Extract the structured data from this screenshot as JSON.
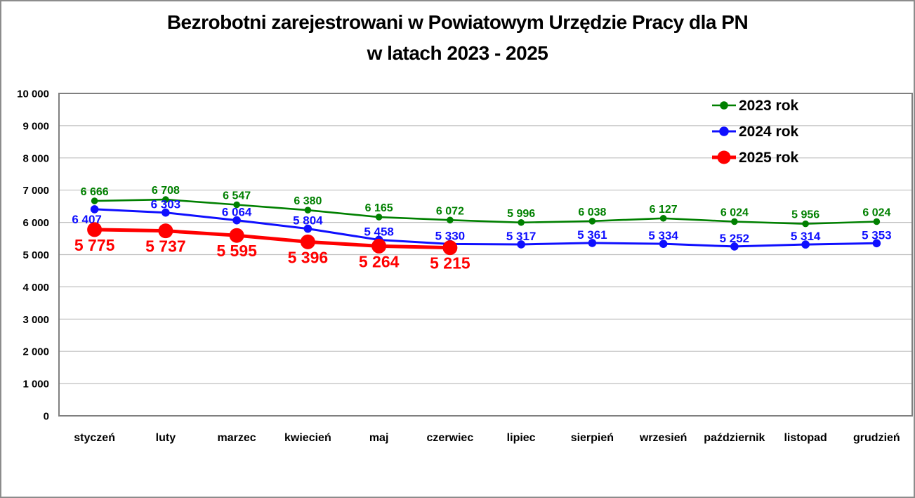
{
  "chart_data": {
    "type": "line",
    "title": "Bezrobotni zarejestrowani w Powiatowym Urzędzie Pracy dla PN w latach 2023 - 2025",
    "title_line1": "Bezrobotni zarejestrowani w Powiatowym Urzędzie Pracy dla PN",
    "title_line2": "w latach 2023 - 2025",
    "xlabel": "",
    "ylabel": "",
    "grid": true,
    "legend_position": "top-right",
    "ylim": [
      0,
      10000
    ],
    "ytick_step": 1000,
    "ytick_labels": [
      "0",
      "1 000",
      "2 000",
      "3 000",
      "4 000",
      "5 000",
      "6 000",
      "7 000",
      "8 000",
      "9 000",
      "10 000"
    ],
    "categories": [
      "styczeń",
      "luty",
      "marzec",
      "kwiecień",
      "maj",
      "czerwiec",
      "lipiec",
      "sierpień",
      "wrzesień",
      "październik",
      "listopad",
      "grudzień"
    ],
    "series": [
      {
        "name": "2023 rok",
        "color": "#008000",
        "values": [
          6666,
          6708,
          6547,
          6380,
          6165,
          6072,
          5996,
          6038,
          6127,
          6024,
          5956,
          6024
        ],
        "value_labels": [
          "6 666",
          "6 708",
          "6 547",
          "6 380",
          "6 165",
          "6 072",
          "5 996",
          "6 038",
          "6 127",
          "6 024",
          "5 956",
          "6 024"
        ]
      },
      {
        "name": "2024 rok",
        "color": "#0f0fff",
        "values": [
          6407,
          6303,
          6064,
          5804,
          5458,
          5330,
          5317,
          5361,
          5334,
          5252,
          5314,
          5353
        ],
        "value_labels": [
          "6 407",
          "6 303",
          "6 064",
          "5 804",
          "5 458",
          "5 330",
          "5 317",
          "5 361",
          "5 334",
          "5 252",
          "5 314",
          "5 353"
        ]
      },
      {
        "name": "2025 rok",
        "color": "#ff0000",
        "values": [
          5775,
          5737,
          5595,
          5396,
          5264,
          5215
        ],
        "value_labels": [
          "5 775",
          "5 737",
          "5 595",
          "5 396",
          "5 264",
          "5 215"
        ]
      }
    ]
  }
}
